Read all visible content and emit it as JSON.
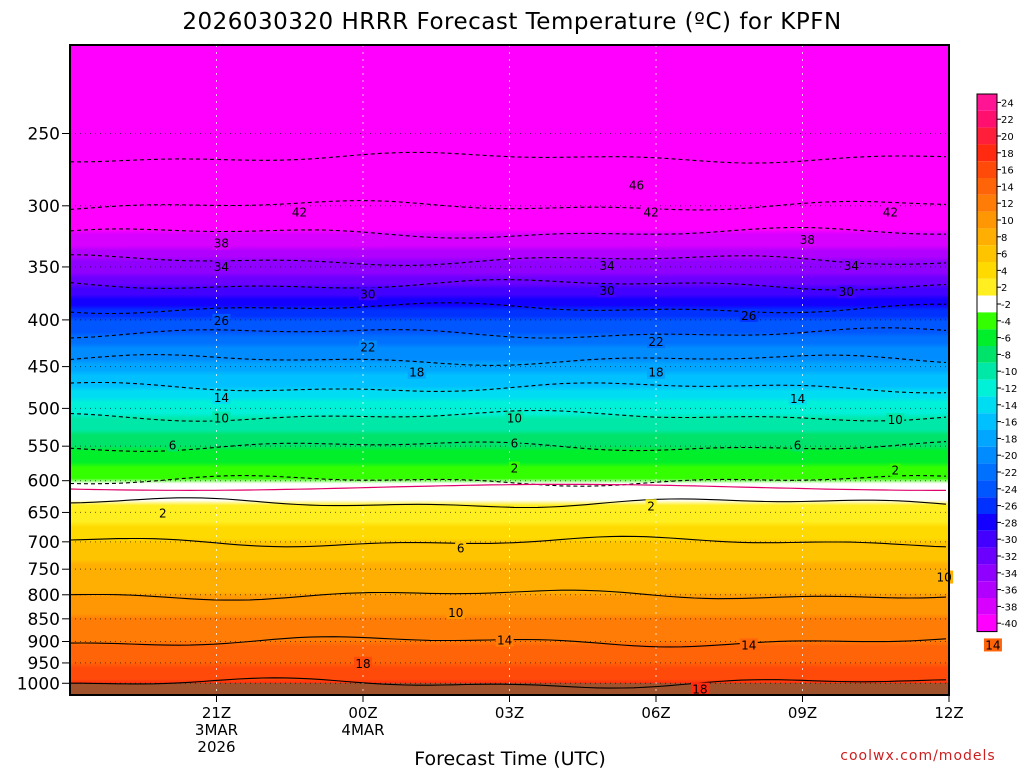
{
  "chart_data": {
    "type": "heatmap",
    "title": "2026030320 HRRR Forecast Temperature (ºC) for KPFN",
    "xlabel": "Forecast Time (UTC)",
    "ylabel": "",
    "credit": "coolwx.com/models",
    "units": "°C",
    "x_range_hours": [
      -2,
      16
    ],
    "x_ticks": [
      {
        "hour": 1,
        "lines": [
          "21Z",
          "3MAR",
          "2026"
        ]
      },
      {
        "hour": 4,
        "lines": [
          "00Z",
          "4MAR"
        ]
      },
      {
        "hour": 7,
        "lines": [
          "03Z"
        ]
      },
      {
        "hour": 10,
        "lines": [
          "06Z"
        ]
      },
      {
        "hour": 13,
        "lines": [
          "09Z"
        ]
      },
      {
        "hour": 16,
        "lines": [
          "12Z"
        ]
      }
    ],
    "y_range_hpa": [
      1030,
      200
    ],
    "y_ticks": [
      "250",
      "300",
      "350",
      "400",
      "450",
      "500",
      "550",
      "600",
      "650",
      "700",
      "750",
      "800",
      "850",
      "900",
      "950",
      "1000"
    ],
    "colorbar": {
      "ticks": [
        "24",
        "22",
        "20",
        "18",
        "16",
        "14",
        "12",
        "10",
        "8",
        "6",
        "4",
        "2",
        "-2",
        "-4",
        "-6",
        "-8",
        "-10",
        "-12",
        "-14",
        "-16",
        "-18",
        "-20",
        "-22",
        "-24",
        "-26",
        "-28",
        "-30",
        "-32",
        "-34",
        "-36",
        "-38",
        "-40"
      ],
      "colors": [
        "#ff1493",
        "#ff0f6e",
        "#ff1f3a",
        "#ff2a10",
        "#ff4a0a",
        "#ff6408",
        "#ff7c06",
        "#ff9604",
        "#ffae02",
        "#ffc400",
        "#ffda00",
        "#ffee20",
        "#ffffff",
        "#33ff00",
        "#00ef2a",
        "#00e36b",
        "#00e8a8",
        "#00f0d8",
        "#00ddf2",
        "#00c0ff",
        "#00a6ff",
        "#008cff",
        "#0070ff",
        "#0057ff",
        "#0031ff",
        "#1400ff",
        "#4400ff",
        "#6c00ff",
        "#9000ff",
        "#b200ff",
        "#d800ff",
        "#ff00ff"
      ]
    },
    "temperature_profile": [
      {
        "p": 1000,
        "t": 18
      },
      {
        "p": 950,
        "t": 16
      },
      {
        "p": 900,
        "t": 14
      },
      {
        "p": 850,
        "t": 12
      },
      {
        "p": 800,
        "t": 10
      },
      {
        "p": 750,
        "t": 9
      },
      {
        "p": 700,
        "t": 6
      },
      {
        "p": 650,
        "t": 3
      },
      {
        "p": 620,
        "t": 1
      },
      {
        "p": 600,
        "t": -2
      },
      {
        "p": 550,
        "t": -6
      },
      {
        "p": 500,
        "t": -11
      },
      {
        "p": 450,
        "t": -17
      },
      {
        "p": 400,
        "t": -24
      },
      {
        "p": 350,
        "t": -33
      },
      {
        "p": 300,
        "t": -42
      },
      {
        "p": 250,
        "t": -48
      }
    ],
    "contour_labels": [
      {
        "text": "46",
        "hour": 9.6,
        "p": 285
      },
      {
        "text": "42",
        "hour": 2.7,
        "p": 305
      },
      {
        "text": "42",
        "hour": 9.9,
        "p": 305
      },
      {
        "text": "42",
        "hour": 14.8,
        "p": 305
      },
      {
        "text": "38",
        "hour": 1.1,
        "p": 330
      },
      {
        "text": "38",
        "hour": 13.1,
        "p": 327
      },
      {
        "text": "34",
        "hour": 1.1,
        "p": 350
      },
      {
        "text": "34",
        "hour": 9.0,
        "p": 349
      },
      {
        "text": "34",
        "hour": 14.0,
        "p": 349
      },
      {
        "text": "30",
        "hour": 4.1,
        "p": 375
      },
      {
        "text": "30",
        "hour": 9.0,
        "p": 372
      },
      {
        "text": "30",
        "hour": 13.9,
        "p": 373
      },
      {
        "text": "26",
        "hour": 1.1,
        "p": 401
      },
      {
        "text": "26",
        "hour": 11.9,
        "p": 396
      },
      {
        "text": "22",
        "hour": 4.1,
        "p": 429
      },
      {
        "text": "22",
        "hour": 10.0,
        "p": 423
      },
      {
        "text": "18",
        "hour": 5.1,
        "p": 457
      },
      {
        "text": "18",
        "hour": 10.0,
        "p": 457
      },
      {
        "text": "14",
        "hour": 1.1,
        "p": 487
      },
      {
        "text": "14",
        "hour": 12.9,
        "p": 488
      },
      {
        "text": "10",
        "hour": 1.1,
        "p": 513
      },
      {
        "text": "10",
        "hour": 7.1,
        "p": 513
      },
      {
        "text": "10",
        "hour": 14.9,
        "p": 515
      },
      {
        "text": "6",
        "hour": 0.1,
        "p": 549
      },
      {
        "text": "6",
        "hour": 7.1,
        "p": 546
      },
      {
        "text": "6",
        "hour": 12.9,
        "p": 549
      },
      {
        "text": "2",
        "hour": 7.1,
        "p": 582
      },
      {
        "text": "2",
        "hour": 14.9,
        "p": 585
      },
      {
        "text": "2",
        "hour": -0.1,
        "p": 652
      },
      {
        "text": "2",
        "hour": 9.9,
        "p": 640
      },
      {
        "text": "6",
        "hour": 6.0,
        "p": 712
      },
      {
        "text": "10",
        "hour": 15.9,
        "p": 766
      },
      {
        "text": "10",
        "hour": 5.9,
        "p": 838
      },
      {
        "text": "14",
        "hour": 6.9,
        "p": 898
      },
      {
        "text": "14",
        "hour": 11.9,
        "p": 909
      },
      {
        "text": "14",
        "hour": 16.9,
        "p": 909
      },
      {
        "text": "18",
        "hour": 4.0,
        "p": 952
      },
      {
        "text": "18",
        "hour": 10.9,
        "p": 1016
      }
    ]
  }
}
